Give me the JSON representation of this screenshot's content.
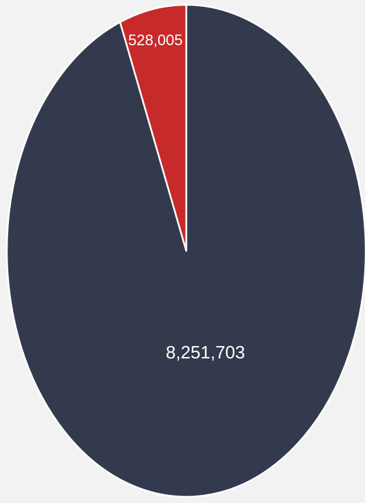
{
  "chart_data": {
    "type": "pie",
    "title": "",
    "legend": "none",
    "slices": [
      {
        "label": "8,251,703",
        "value": 8251703,
        "color": "#333a4d"
      },
      {
        "label": "528,005",
        "value": 528005,
        "color": "#c62a2a"
      }
    ]
  }
}
